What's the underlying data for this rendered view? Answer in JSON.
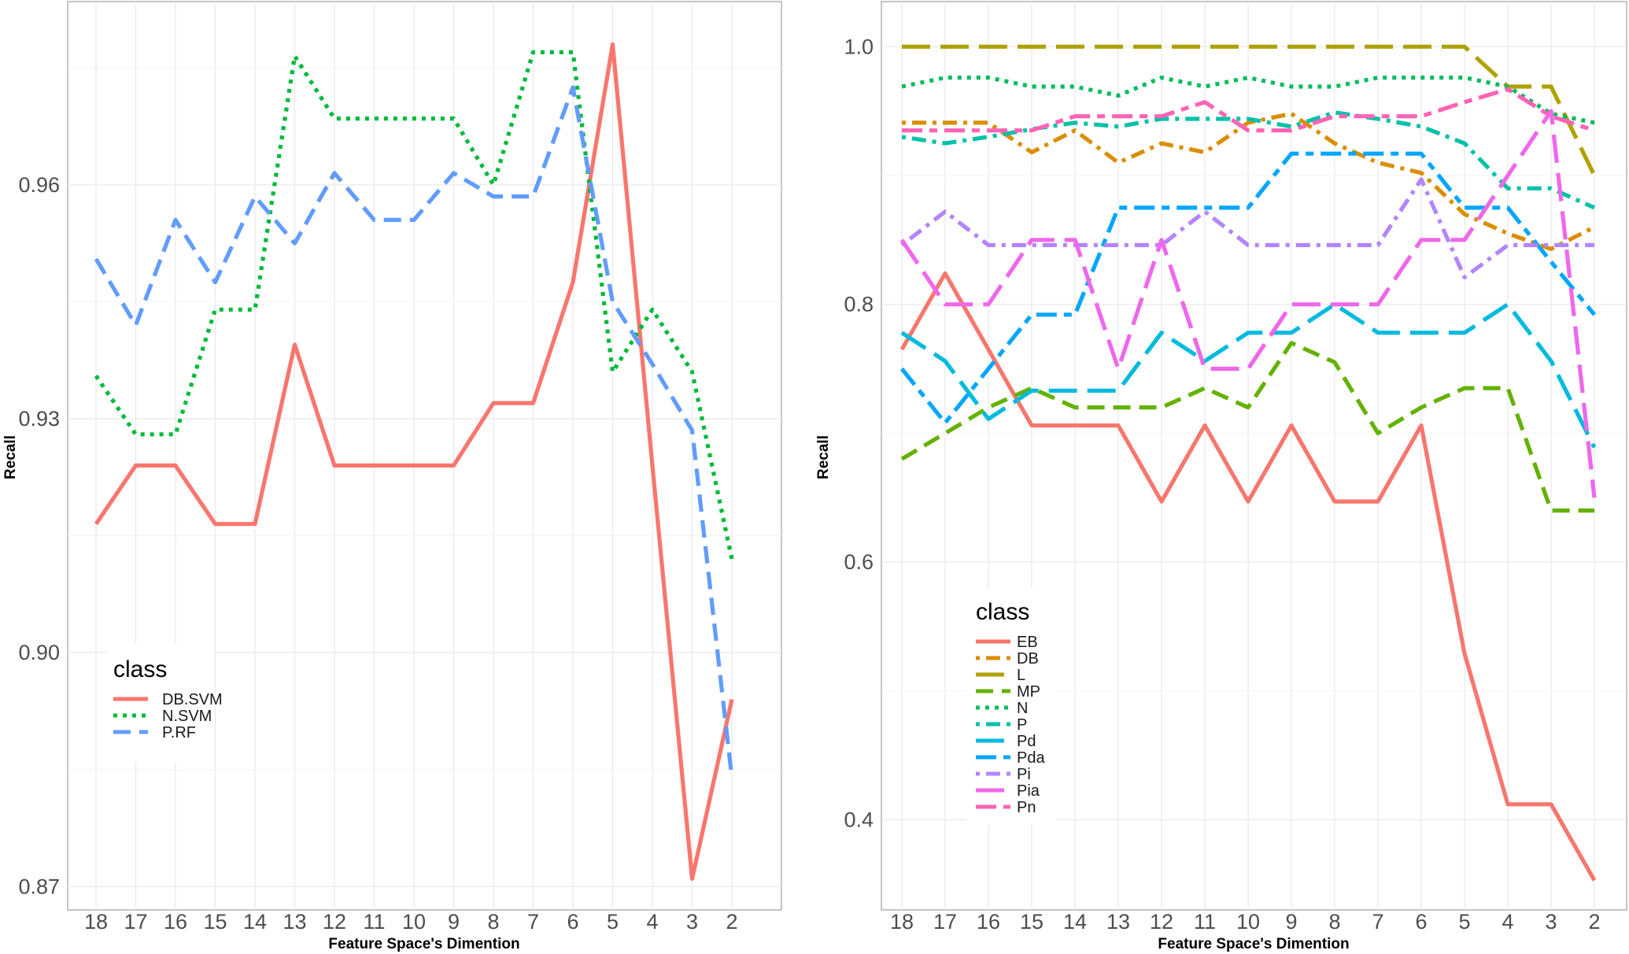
{
  "chart_data": [
    {
      "type": "line",
      "title": "",
      "xlabel": "Feature Space's Dimention",
      "ylabel": "Recall",
      "categories": [
        "18",
        "17",
        "16",
        "15",
        "14",
        "13",
        "12",
        "11",
        "10",
        "9",
        "8",
        "7",
        "6",
        "5",
        "4",
        "3",
        "2"
      ],
      "yticks": [
        0.87,
        0.9,
        0.93,
        0.96
      ],
      "ylim": [
        0.867,
        0.9835
      ],
      "grid": true,
      "legend": {
        "title": "class",
        "position": "bottom-left"
      },
      "series": [
        {
          "name": "DB.SVM",
          "color": "#F8766D",
          "dash": "solid",
          "values": [
            0.9165,
            0.924,
            0.924,
            0.9165,
            0.9165,
            0.9395,
            0.924,
            0.924,
            0.924,
            0.924,
            0.932,
            0.932,
            0.9475,
            0.978,
            0.924,
            0.871,
            0.894
          ]
        },
        {
          "name": "N.SVM",
          "color": "#00BA38",
          "dash": "dotted",
          "values": [
            0.9355,
            0.928,
            0.928,
            0.944,
            0.944,
            0.9765,
            0.9685,
            0.9685,
            0.9685,
            0.9685,
            0.96,
            0.977,
            0.977,
            0.936,
            0.944,
            0.936,
            0.912
          ]
        },
        {
          "name": "P.RF",
          "color": "#619CFF",
          "dash": "dashed",
          "values": [
            0.9505,
            0.942,
            0.9555,
            0.9475,
            0.9585,
            0.9525,
            0.9615,
            0.9555,
            0.9555,
            0.9615,
            0.9585,
            0.9585,
            0.9725,
            0.945,
            0.937,
            0.9285,
            0.884
          ]
        }
      ]
    },
    {
      "type": "line",
      "title": "",
      "xlabel": "Feature Space's Dimention",
      "ylabel": "Recall",
      "categories": [
        "18",
        "17",
        "16",
        "15",
        "14",
        "13",
        "12",
        "11",
        "10",
        "9",
        "8",
        "7",
        "6",
        "5",
        "4",
        "3",
        "2"
      ],
      "yticks": [
        0.4,
        0.6,
        0.8,
        1.0
      ],
      "ylim": [
        0.33,
        1.035
      ],
      "grid": true,
      "legend": {
        "title": "class",
        "position": "bottom-left"
      },
      "series": [
        {
          "name": "EB",
          "color": "#F8766D",
          "dash": "solid",
          "values": [
            0.765,
            0.824,
            0.765,
            0.706,
            0.706,
            0.706,
            0.647,
            0.706,
            0.647,
            0.706,
            0.647,
            0.647,
            0.706,
            0.529,
            0.412,
            0.412,
            0.353
          ]
        },
        {
          "name": "DB",
          "color": "#DB8E00",
          "dash": "dotdash",
          "values": [
            0.941,
            0.941,
            0.941,
            0.918,
            0.935,
            0.91,
            0.925,
            0.918,
            0.941,
            0.948,
            0.925,
            0.91,
            0.902,
            0.87,
            0.855,
            0.843,
            0.86
          ]
        },
        {
          "name": "L",
          "color": "#AEA200",
          "dash": "longdash",
          "values": [
            1.0,
            1.0,
            1.0,
            1.0,
            1.0,
            1.0,
            1.0,
            1.0,
            1.0,
            1.0,
            1.0,
            1.0,
            1.0,
            1.0,
            0.969,
            0.969,
            0.9
          ]
        },
        {
          "name": "MP",
          "color": "#64B200",
          "dash": "dashed",
          "values": [
            0.68,
            0.7,
            0.72,
            0.735,
            0.72,
            0.72,
            0.72,
            0.735,
            0.72,
            0.77,
            0.755,
            0.7,
            0.72,
            0.735,
            0.735,
            0.64,
            0.64
          ]
        },
        {
          "name": "N",
          "color": "#00BD5C",
          "dash": "dotted",
          "values": [
            0.969,
            0.976,
            0.976,
            0.969,
            0.969,
            0.962,
            0.976,
            0.969,
            0.976,
            0.969,
            0.969,
            0.976,
            0.976,
            0.976,
            0.969,
            0.948,
            0.941
          ]
        },
        {
          "name": "P",
          "color": "#00C1A7",
          "dash": "dotdash",
          "values": [
            0.93,
            0.925,
            0.93,
            0.936,
            0.941,
            0.938,
            0.944,
            0.944,
            0.944,
            0.938,
            0.949,
            0.944,
            0.938,
            0.925,
            0.89,
            0.89,
            0.875
          ]
        },
        {
          "name": "Pd",
          "color": "#00BADE",
          "dash": "longdash",
          "values": [
            0.778,
            0.756,
            0.711,
            0.733,
            0.733,
            0.733,
            0.778,
            0.756,
            0.778,
            0.778,
            0.8,
            0.778,
            0.778,
            0.778,
            0.8,
            0.756,
            0.689
          ]
        },
        {
          "name": "Pda",
          "color": "#00A6FF",
          "dash": "twodash",
          "values": [
            0.75,
            0.708,
            0.75,
            0.792,
            0.792,
            0.875,
            0.875,
            0.875,
            0.875,
            0.917,
            0.917,
            0.917,
            0.917,
            0.875,
            0.875,
            0.833,
            0.792
          ]
        },
        {
          "name": "Pi",
          "color": "#B385FF",
          "dash": "dotdash",
          "values": [
            0.846,
            0.872,
            0.846,
            0.846,
            0.846,
            0.846,
            0.846,
            0.872,
            0.846,
            0.846,
            0.846,
            0.846,
            0.897,
            0.821,
            0.846,
            0.846,
            0.846
          ]
        },
        {
          "name": "Pia",
          "color": "#EF67EB",
          "dash": "longdash",
          "values": [
            0.85,
            0.8,
            0.8,
            0.85,
            0.85,
            0.75,
            0.85,
            0.75,
            0.75,
            0.8,
            0.8,
            0.8,
            0.85,
            0.85,
            0.9,
            0.95,
            0.65
          ]
        },
        {
          "name": "Pn",
          "color": "#FF63B6",
          "dash": "twodash",
          "values": [
            0.935,
            0.935,
            0.935,
            0.935,
            0.946,
            0.946,
            0.946,
            0.957,
            0.935,
            0.935,
            0.946,
            0.946,
            0.946,
            0.957,
            0.967,
            0.946,
            0.935
          ]
        }
      ]
    }
  ]
}
